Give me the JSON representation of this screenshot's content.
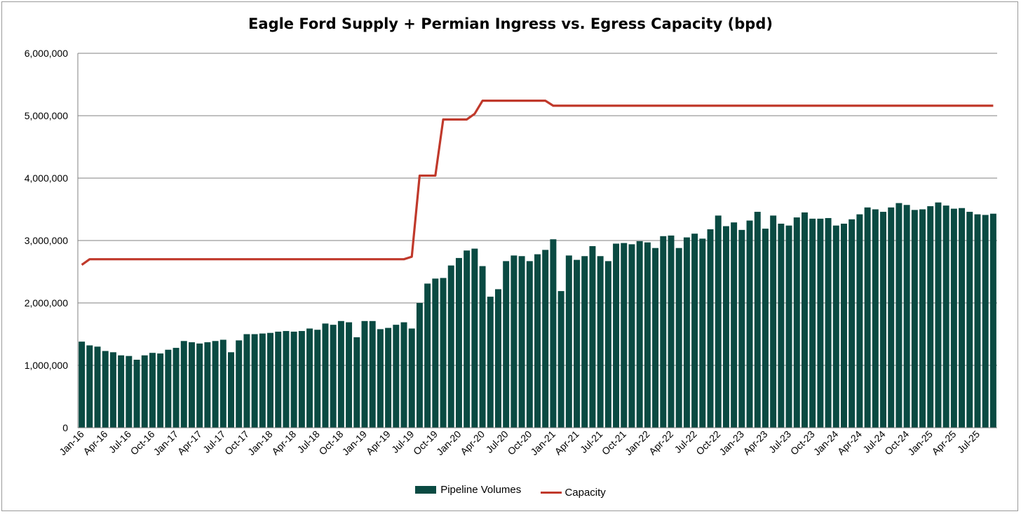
{
  "chart_data": {
    "type": "bar",
    "title": "Eagle Ford Supply + Permian Ingress vs. Egress Capacity (bpd)",
    "xlabel": "",
    "ylabel": "",
    "ylim": [
      0,
      6000000
    ],
    "yticks": [
      0,
      1000000,
      2000000,
      3000000,
      4000000,
      5000000,
      6000000
    ],
    "ytick_labels": [
      "0",
      "1,000,000",
      "2,000,000",
      "3,000,000",
      "4,000,000",
      "5,000,000",
      "6,000,000"
    ],
    "grid": "horizontal",
    "legend_position": "bottom",
    "categories": [
      "Jan-16",
      "Feb-16",
      "Mar-16",
      "Apr-16",
      "May-16",
      "Jun-16",
      "Jul-16",
      "Aug-16",
      "Sep-16",
      "Oct-16",
      "Nov-16",
      "Dec-16",
      "Jan-17",
      "Feb-17",
      "Mar-17",
      "Apr-17",
      "May-17",
      "Jun-17",
      "Jul-17",
      "Aug-17",
      "Sep-17",
      "Oct-17",
      "Nov-17",
      "Dec-17",
      "Jan-18",
      "Feb-18",
      "Mar-18",
      "Apr-18",
      "May-18",
      "Jun-18",
      "Jul-18",
      "Aug-18",
      "Sep-18",
      "Oct-18",
      "Nov-18",
      "Dec-18",
      "Jan-19",
      "Feb-19",
      "Mar-19",
      "Apr-19",
      "May-19",
      "Jun-19",
      "Jul-19",
      "Aug-19",
      "Sep-19",
      "Oct-19",
      "Nov-19",
      "Dec-19",
      "Jan-20",
      "Feb-20",
      "Mar-20",
      "Apr-20",
      "May-20",
      "Jun-20",
      "Jul-20",
      "Aug-20",
      "Sep-20",
      "Oct-20",
      "Nov-20",
      "Dec-20",
      "Jan-21",
      "Feb-21",
      "Mar-21",
      "Apr-21",
      "May-21",
      "Jun-21",
      "Jul-21",
      "Aug-21",
      "Sep-21",
      "Oct-21",
      "Nov-21",
      "Dec-21",
      "Jan-22",
      "Feb-22",
      "Mar-22",
      "Apr-22",
      "May-22",
      "Jun-22",
      "Jul-22",
      "Aug-22",
      "Sep-22",
      "Oct-22",
      "Nov-22",
      "Dec-22",
      "Jan-23",
      "Feb-23",
      "Mar-23",
      "Apr-23",
      "May-23",
      "Jun-23",
      "Jul-23",
      "Aug-23",
      "Sep-23",
      "Oct-23",
      "Nov-23",
      "Dec-23",
      "Jan-24",
      "Feb-24",
      "Mar-24",
      "Apr-24",
      "May-24",
      "Jun-24",
      "Jul-24",
      "Aug-24",
      "Sep-24",
      "Oct-24",
      "Nov-24",
      "Dec-24",
      "Jan-25",
      "Feb-25",
      "Mar-25",
      "Apr-25",
      "May-25",
      "Jun-25",
      "Jul-25",
      "Aug-25",
      "Sep-25"
    ],
    "x_label_every": 3,
    "series": [
      {
        "name": "Pipeline Volumes",
        "type": "bar",
        "color": "#0a4a42",
        "values": [
          1380000,
          1320000,
          1300000,
          1230000,
          1210000,
          1160000,
          1150000,
          1090000,
          1160000,
          1200000,
          1190000,
          1250000,
          1280000,
          1390000,
          1370000,
          1350000,
          1370000,
          1390000,
          1410000,
          1210000,
          1400000,
          1500000,
          1500000,
          1510000,
          1520000,
          1540000,
          1550000,
          1540000,
          1550000,
          1590000,
          1570000,
          1670000,
          1650000,
          1710000,
          1690000,
          1450000,
          1710000,
          1710000,
          1580000,
          1600000,
          1650000,
          1690000,
          1590000,
          2000000,
          2310000,
          2390000,
          2400000,
          2600000,
          2720000,
          2840000,
          2870000,
          2590000,
          2100000,
          2220000,
          2670000,
          2760000,
          2750000,
          2670000,
          2780000,
          2850000,
          3020000,
          2190000,
          2760000,
          2690000,
          2750000,
          2910000,
          2750000,
          2670000,
          2950000,
          2960000,
          2940000,
          2990000,
          2970000,
          2880000,
          3070000,
          3080000,
          2880000,
          3050000,
          3110000,
          3030000,
          3180000,
          3400000,
          3230000,
          3290000,
          3170000,
          3320000,
          3460000,
          3190000,
          3400000,
          3270000,
          3240000,
          3370000,
          3450000,
          3350000,
          3350000,
          3360000,
          3240000,
          3270000,
          3340000,
          3420000,
          3530000,
          3500000,
          3460000,
          3530000,
          3600000,
          3570000,
          3490000,
          3500000,
          3550000,
          3610000,
          3560000,
          3510000,
          3520000,
          3460000,
          3420000,
          3410000,
          3430000
        ]
      },
      {
        "name": "Capacity",
        "type": "line",
        "color": "#c0392b",
        "values": [
          2610000,
          2700000,
          2700000,
          2700000,
          2700000,
          2700000,
          2700000,
          2700000,
          2700000,
          2700000,
          2700000,
          2700000,
          2700000,
          2700000,
          2700000,
          2700000,
          2700000,
          2700000,
          2700000,
          2700000,
          2700000,
          2700000,
          2700000,
          2700000,
          2700000,
          2700000,
          2700000,
          2700000,
          2700000,
          2700000,
          2700000,
          2700000,
          2700000,
          2700000,
          2700000,
          2700000,
          2700000,
          2700000,
          2700000,
          2700000,
          2700000,
          2700000,
          2740000,
          4040000,
          4040000,
          4040000,
          4940000,
          4940000,
          4940000,
          4940000,
          5030000,
          5240000,
          5240000,
          5240000,
          5240000,
          5240000,
          5240000,
          5240000,
          5240000,
          5240000,
          5160000,
          5160000,
          5160000,
          5160000,
          5160000,
          5160000,
          5160000,
          5160000,
          5160000,
          5160000,
          5160000,
          5160000,
          5160000,
          5160000,
          5160000,
          5160000,
          5160000,
          5160000,
          5160000,
          5160000,
          5160000,
          5160000,
          5160000,
          5160000,
          5160000,
          5160000,
          5160000,
          5160000,
          5160000,
          5160000,
          5160000,
          5160000,
          5160000,
          5160000,
          5160000,
          5160000,
          5160000,
          5160000,
          5160000,
          5160000,
          5160000,
          5160000,
          5160000,
          5160000,
          5160000,
          5160000,
          5160000,
          5160000,
          5160000,
          5160000,
          5160000,
          5160000,
          5160000,
          5160000,
          5160000,
          5160000,
          5160000
        ]
      }
    ]
  },
  "legend": {
    "items": [
      {
        "label": "Pipeline Volumes",
        "color": "#0a4a42"
      },
      {
        "label": "Capacity",
        "color": "#c0392b"
      }
    ]
  }
}
